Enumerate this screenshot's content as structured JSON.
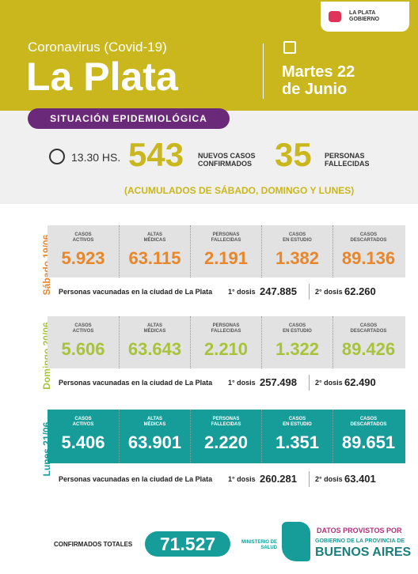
{
  "header": {
    "logo": [
      "LA PLATA",
      "GOBIERNO"
    ],
    "subtitle": "Coronavirus (Covid-19)",
    "title": "La Plata",
    "date": [
      "Martes 22",
      "de Junio"
    ]
  },
  "banner": "SITUACIÓN EPIDEMIOLÓGICA",
  "summary": {
    "time": "13.30 HS.",
    "new_cases": "543",
    "new_cases_label": [
      "NUEVOS CASOS",
      "CONFIRMADOS"
    ],
    "deaths": "35",
    "deaths_label": [
      "PERSONAS",
      "FALLECIDAS"
    ],
    "note": "(ACUMULADOS DE SÁBADO, DOMINGO Y LUNES)"
  },
  "stat_labels": [
    [
      "CASOS",
      "ACTIVOS"
    ],
    [
      "ALTAS",
      "MÉDICAS"
    ],
    [
      "PERSONAS",
      "FALLECIDAS"
    ],
    [
      "CASOS",
      "EN ESTUDIO"
    ],
    [
      "CASOS",
      "DESCARTADOS"
    ]
  ],
  "vaccination_label": "Personas vacunadas en la ciudad de La Plata",
  "dose1_label": "1° dosis",
  "dose2_label": "2° dosis",
  "days": [
    {
      "label": "Sábado 19/06",
      "values": [
        "5.923",
        "63.115",
        "2.191",
        "1.382",
        "89.136"
      ],
      "dose1": "247.885",
      "dose2": "62.260"
    },
    {
      "label": "Domingo 20/06",
      "values": [
        "5.606",
        "63.643",
        "2.210",
        "1.322",
        "89.426"
      ],
      "dose1": "257.498",
      "dose2": "62.490"
    },
    {
      "label": "Lunes 21/06",
      "values": [
        "5.406",
        "63.901",
        "2.220",
        "1.351",
        "89.651"
      ],
      "dose1": "260.281",
      "dose2": "63.401"
    }
  ],
  "footer": {
    "total_label": "CONFIRMADOS TOTALES",
    "total": "71.527",
    "ministry": [
      "MINISTERIO DE",
      "SALUD"
    ],
    "provided": "DATOS PROVISTOS POR",
    "gov": "GOBIERNO DE LA PROVINCIA DE",
    "province": "BUENOS AIRES"
  }
}
